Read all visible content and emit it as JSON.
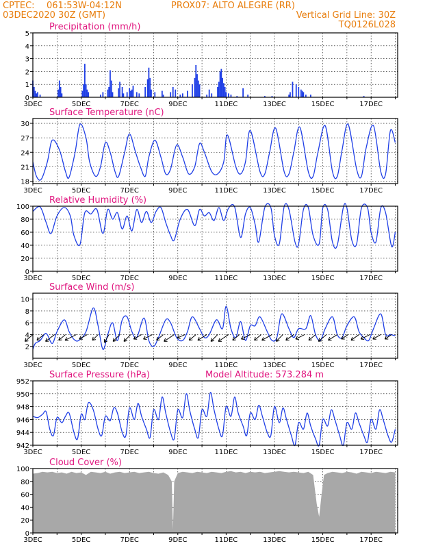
{
  "header": {
    "line1_left": "CPTEC:",
    "location": "061:53W-04:12N",
    "station": "PROX07: ALTO ALEGRE (RR)",
    "date": "03DEC2020 30Z (GMT)",
    "grid_note": "Vertical Grid Line: 30Z",
    "run_code": "TQ0126L028"
  },
  "colors": {
    "header": "#e87d0c",
    "panel_title": "#e0167f",
    "series": "#1f3fe6",
    "cloud": "#a8a8a8"
  },
  "x_axis": {
    "tick_labels": [
      "3DEC",
      "5DEC",
      "7DEC",
      "9DEC",
      "11DEC",
      "13DEC",
      "15DEC",
      "17DEC"
    ],
    "day_range": [
      3,
      18.1
    ]
  },
  "chart_data": [
    {
      "type": "bar",
      "title": "Precipitation (mm/h)",
      "ylim": [
        0,
        5
      ],
      "yticks": [
        0,
        1,
        2,
        3,
        4,
        5
      ],
      "x": [
        3.0,
        3.05,
        3.1,
        3.15,
        3.2,
        3.3,
        4.05,
        4.1,
        4.15,
        4.2,
        5.05,
        5.1,
        5.15,
        5.2,
        5.25,
        5.3,
        5.8,
        5.9,
        6.1,
        6.15,
        6.2,
        6.25,
        6.3,
        6.55,
        6.6,
        6.7,
        6.75,
        6.9,
        7.0,
        7.05,
        7.1,
        7.15,
        7.3,
        7.4,
        7.65,
        7.75,
        7.8,
        7.85,
        7.9,
        8.05,
        8.35,
        8.4,
        8.7,
        8.8,
        8.9,
        9.1,
        9.2,
        9.4,
        9.6,
        9.7,
        9.75,
        9.8,
        9.85,
        9.9,
        10.2,
        10.3,
        10.4,
        10.65,
        10.7,
        10.75,
        10.8,
        10.85,
        10.9,
        10.95,
        11.0,
        11.1,
        11.2,
        11.45,
        11.7,
        11.9,
        12.6,
        12.9,
        13.6,
        13.65,
        13.75,
        13.9,
        14.0,
        14.1,
        14.15,
        14.2,
        14.3,
        14.5,
        16.7
      ],
      "values": [
        1.3,
        0.8,
        0.5,
        0.3,
        0.4,
        0.2,
        0.6,
        1.3,
        0.8,
        0.3,
        0.5,
        1.0,
        2.6,
        1.0,
        0.6,
        0.4,
        0.2,
        0.4,
        0.6,
        0.8,
        2.1,
        1.3,
        0.4,
        0.7,
        1.2,
        0.8,
        0.3,
        0.4,
        0.7,
        0.5,
        0.6,
        0.9,
        0.4,
        0.3,
        0.8,
        1.4,
        2.3,
        1.5,
        0.6,
        0.4,
        0.5,
        0.2,
        0.4,
        0.8,
        0.6,
        0.2,
        0.3,
        0.5,
        1.0,
        1.5,
        2.5,
        1.8,
        1.3,
        1.0,
        0.2,
        0.6,
        0.3,
        0.8,
        1.2,
        2.0,
        2.2,
        1.5,
        1.1,
        0.8,
        0.4,
        0.3,
        0.2,
        0.1,
        0.7,
        0.2,
        0.1,
        0.1,
        0.2,
        0.4,
        1.2,
        1.0,
        0.8,
        0.6,
        0.5,
        0.4,
        0.2,
        0.2,
        0.1
      ]
    },
    {
      "type": "line",
      "title": "Surface Temperature (nC)",
      "ylim": [
        17.5,
        31
      ],
      "yticks": [
        18,
        21,
        24,
        27,
        30
      ],
      "x": [
        3.0,
        3.15,
        3.35,
        3.6,
        3.8,
        4.1,
        4.35,
        4.5,
        4.75,
        4.95,
        5.2,
        5.35,
        5.6,
        5.8,
        6.0,
        6.2,
        6.4,
        6.55,
        6.8,
        7.0,
        7.25,
        7.45,
        7.65,
        7.8,
        8.05,
        8.3,
        8.5,
        8.7,
        8.95,
        9.2,
        9.45,
        9.7,
        9.9,
        10.1,
        10.4,
        10.65,
        10.9,
        11.05,
        11.4,
        11.6,
        11.8,
        12.0,
        12.4,
        12.6,
        12.8,
        13.05,
        13.4,
        13.6,
        13.8,
        14.05,
        14.4,
        14.6,
        14.8,
        15.1,
        15.4,
        15.6,
        15.8,
        16.05,
        16.4,
        16.6,
        16.8,
        17.1,
        17.4,
        17.6,
        17.8,
        18.0
      ],
      "values": [
        22,
        19,
        18.4,
        22,
        26.5,
        24.5,
        20,
        18.8,
        24,
        29.8,
        27,
        22,
        19,
        21,
        26,
        24,
        20,
        19,
        24,
        27.8,
        24,
        21,
        19,
        23,
        26.5,
        23,
        19.5,
        20.5,
        25.5,
        23,
        19.5,
        21,
        25.8,
        24,
        20,
        19.5,
        22,
        27.6,
        21,
        19.5,
        22,
        28.5,
        20,
        19.5,
        24,
        29,
        20,
        19.5,
        24,
        29.2,
        20,
        19,
        24,
        29.5,
        20,
        19,
        24.5,
        29.8,
        20.5,
        19,
        25,
        29.5,
        20,
        19.5,
        28.5,
        26
      ]
    },
    {
      "type": "line",
      "title": "Relative Humidity (%)",
      "ylim": [
        0,
        100
      ],
      "yticks": [
        0,
        20,
        40,
        60,
        80,
        100
      ],
      "x": [
        3.0,
        3.3,
        3.55,
        3.75,
        4.0,
        4.3,
        4.55,
        4.7,
        4.95,
        5.15,
        5.4,
        5.65,
        5.9,
        6.1,
        6.3,
        6.5,
        6.7,
        6.9,
        7.1,
        7.3,
        7.5,
        7.7,
        7.9,
        8.1,
        8.3,
        8.5,
        8.7,
        8.85,
        9.1,
        9.4,
        9.7,
        9.9,
        10.1,
        10.3,
        10.5,
        10.7,
        10.9,
        11.1,
        11.35,
        11.6,
        11.8,
        12.0,
        12.2,
        12.35,
        12.6,
        12.85,
        13.0,
        13.2,
        13.4,
        13.6,
        13.85,
        14.0,
        14.2,
        14.4,
        14.6,
        14.85,
        15.0,
        15.2,
        15.4,
        15.6,
        15.85,
        16.0,
        16.2,
        16.4,
        16.6,
        16.85,
        17.0,
        17.2,
        17.4,
        17.6,
        17.85,
        18.0
      ],
      "values": [
        92,
        99,
        75,
        58,
        85,
        98,
        85,
        55,
        41,
        90,
        88,
        95,
        58,
        95,
        80,
        90,
        65,
        85,
        62,
        95,
        75,
        92,
        75,
        92,
        98,
        75,
        55,
        48,
        80,
        95,
        70,
        95,
        85,
        90,
        78,
        98,
        78,
        97,
        99,
        52,
        88,
        98,
        72,
        45,
        98,
        98,
        55,
        42,
        99,
        95,
        45,
        42,
        95,
        98,
        55,
        42,
        97,
        95,
        45,
        40,
        98,
        97,
        48,
        42,
        97,
        98,
        60,
        45,
        97,
        90,
        38,
        60
      ]
    },
    {
      "type": "line",
      "title": "Surface Wind (m/s)",
      "ylim": [
        0,
        11
      ],
      "yticks": [
        2,
        4,
        6,
        8,
        10
      ],
      "x": [
        3.0,
        3.1,
        3.3,
        3.55,
        3.8,
        4.0,
        4.3,
        4.5,
        4.7,
        4.9,
        5.2,
        5.5,
        5.7,
        5.9,
        6.1,
        6.3,
        6.5,
        6.7,
        6.9,
        7.1,
        7.3,
        7.6,
        7.8,
        8.0,
        8.2,
        8.5,
        8.7,
        8.95,
        9.2,
        9.4,
        9.6,
        9.9,
        10.1,
        10.3,
        10.6,
        10.85,
        11.0,
        11.2,
        11.4,
        11.6,
        11.8,
        12.0,
        12.2,
        12.4,
        12.7,
        12.9,
        13.1,
        13.3,
        13.6,
        13.8,
        14.0,
        14.3,
        14.5,
        14.7,
        14.9,
        15.1,
        15.4,
        15.6,
        15.8,
        16.0,
        16.3,
        16.5,
        16.7,
        16.9,
        17.1,
        17.4,
        17.6,
        17.8,
        18.0
      ],
      "values": [
        1.5,
        2.5,
        3.0,
        4.2,
        2.5,
        4.5,
        6.5,
        4.5,
        3.2,
        3.0,
        4.5,
        8.5,
        5.5,
        1.5,
        4.0,
        6.0,
        3.0,
        6.5,
        7.0,
        4.5,
        3.5,
        6.8,
        3.0,
        2.0,
        3.5,
        6.5,
        6.0,
        3.5,
        3.0,
        4.5,
        7.0,
        5.0,
        3.5,
        4.0,
        6.5,
        5.0,
        8.8,
        5.0,
        3.5,
        6.2,
        3.0,
        5.5,
        5.5,
        7.0,
        4.5,
        3.0,
        3.5,
        7.5,
        5.0,
        3.5,
        5.0,
        5.0,
        7.2,
        4.0,
        3.0,
        5.0,
        7.0,
        4.0,
        3.5,
        5.5,
        7.0,
        4.5,
        3.5,
        3.0,
        5.0,
        7.5,
        4.0,
        4.0,
        3.8
      ]
    },
    {
      "type": "line",
      "title": "Surface Pressure (hPa)",
      "annotation": "Model Altitude: 573.284 m",
      "ylim": [
        942,
        952
      ],
      "yticks": [
        942,
        944,
        946,
        948,
        950,
        952
      ],
      "x": [
        3.0,
        3.2,
        3.4,
        3.55,
        3.7,
        3.85,
        4.0,
        4.2,
        4.35,
        4.5,
        4.7,
        4.85,
        5.0,
        5.15,
        5.3,
        5.5,
        5.7,
        5.85,
        6.0,
        6.2,
        6.35,
        6.5,
        6.7,
        6.85,
        7.0,
        7.2,
        7.35,
        7.5,
        7.7,
        7.85,
        8.0,
        8.2,
        8.35,
        8.5,
        8.7,
        8.85,
        9.0,
        9.2,
        9.35,
        9.5,
        9.7,
        9.85,
        10.0,
        10.2,
        10.35,
        10.5,
        10.7,
        10.85,
        11.0,
        11.2,
        11.35,
        11.5,
        11.7,
        11.85,
        12.0,
        12.2,
        12.35,
        12.5,
        12.7,
        12.85,
        13.0,
        13.2,
        13.35,
        13.5,
        13.7,
        13.85,
        14.0,
        14.2,
        14.35,
        14.5,
        14.7,
        14.85,
        15.0,
        15.2,
        15.35,
        15.5,
        15.7,
        15.85,
        16.0,
        16.2,
        16.35,
        16.5,
        16.7,
        16.85,
        17.0,
        17.2,
        17.35,
        17.5,
        17.7,
        17.85,
        18.0
      ],
      "values": [
        946.5,
        946.3,
        946.8,
        947.2,
        944.5,
        943.5,
        946.3,
        945.5,
        946.5,
        947.0,
        944.0,
        943.0,
        946.8,
        946.0,
        948.6,
        947.5,
        944.5,
        943.5,
        946.5,
        945.8,
        947.8,
        947.0,
        944.0,
        943.5,
        947.8,
        946.0,
        948.5,
        946.5,
        944.5,
        943.2,
        947.5,
        946.0,
        949.5,
        947.0,
        944.0,
        943.0,
        947.5,
        946.3,
        950.0,
        947.3,
        944.5,
        943.2,
        947.5,
        946.5,
        950.2,
        947.5,
        944.5,
        943.5,
        948.0,
        946.5,
        949.5,
        947.0,
        945.0,
        943.5,
        947.0,
        946.0,
        948.2,
        946.5,
        944.0,
        943.5,
        948.0,
        945.5,
        947.8,
        946.0,
        943.5,
        942.0,
        945.5,
        944.5,
        947.0,
        945.0,
        943.0,
        942.0,
        946.0,
        945.0,
        947.5,
        946.0,
        943.5,
        942.0,
        945.5,
        944.5,
        947.0,
        945.5,
        943.5,
        942.5,
        946.0,
        944.5,
        947.5,
        946.0,
        943.5,
        942.5,
        944.5
      ]
    },
    {
      "type": "area",
      "title": "Cloud Cover (%)",
      "ylim": [
        0,
        100
      ],
      "yticks": [
        0,
        20,
        40,
        60,
        80,
        100
      ],
      "x": [
        3.0,
        3.2,
        3.4,
        3.6,
        3.8,
        4.0,
        4.2,
        4.4,
        4.6,
        4.8,
        5.0,
        5.2,
        5.4,
        5.6,
        5.8,
        6.0,
        6.2,
        6.4,
        6.6,
        6.8,
        7.0,
        7.2,
        7.4,
        7.6,
        7.8,
        8.0,
        8.2,
        8.4,
        8.6,
        8.75,
        8.8,
        8.85,
        9.0,
        9.2,
        9.4,
        9.6,
        9.8,
        10.0,
        10.2,
        10.4,
        10.6,
        10.8,
        11.0,
        11.2,
        11.4,
        11.6,
        11.8,
        12.0,
        12.2,
        12.4,
        12.6,
        12.8,
        13.0,
        13.2,
        13.4,
        13.6,
        13.8,
        14.0,
        14.2,
        14.4,
        14.6,
        14.75,
        14.85,
        14.95,
        15.05,
        15.2,
        15.4,
        15.6,
        15.8,
        16.0,
        16.2,
        16.4,
        16.6,
        16.8,
        17.0,
        17.2,
        17.4,
        17.6,
        17.8,
        18.0
      ],
      "values": [
        92,
        93,
        95,
        94,
        95,
        93,
        94,
        92,
        95,
        93,
        94,
        90,
        95,
        94,
        93,
        95,
        92,
        94,
        95,
        93,
        94,
        95,
        93,
        94,
        95,
        93,
        92,
        94,
        90,
        80,
        5,
        80,
        93,
        95,
        94,
        93,
        95,
        94,
        93,
        95,
        94,
        93,
        95,
        96,
        94,
        95,
        93,
        95,
        94,
        95,
        93,
        94,
        95,
        96,
        95,
        94,
        95,
        94,
        93,
        95,
        90,
        45,
        25,
        60,
        90,
        93,
        95,
        94,
        93,
        95,
        94,
        92,
        95,
        94,
        93,
        95,
        94,
        93,
        95,
        94
      ]
    }
  ],
  "wind_vectors": {
    "days": [
      3.0,
      3.45,
      3.9,
      4.35,
      4.8,
      5.25,
      5.7,
      6.15,
      6.6,
      7.05,
      7.5,
      7.95,
      8.4,
      8.85,
      9.3,
      9.75,
      10.2,
      10.65,
      11.1,
      11.55,
      12.0,
      12.45,
      12.9,
      13.35,
      13.8,
      14.25,
      14.7,
      15.15,
      15.6,
      16.05,
      16.5,
      16.95,
      17.4,
      17.85
    ],
    "u": [
      -3.5,
      -3.0,
      -4.0,
      -3.0,
      -5.0,
      -3.5,
      -2.5,
      -2.0,
      -3.0,
      -3.0,
      -3.5,
      -4.0,
      -3.0,
      -4.5,
      -3.5,
      -3.0,
      -4.0,
      -3.0,
      -4.5,
      -3.0,
      -4.0,
      -3.0,
      -4.5,
      -3.0,
      -3.5,
      -4.0,
      -3.0,
      -3.5,
      -4.0,
      -3.0,
      -3.5,
      -4.0,
      -3.5,
      -3.0
    ],
    "v": [
      -3.0,
      -2.5,
      -3.0,
      -2.5,
      -2.5,
      -2.0,
      -2.5,
      -3.5,
      -3.0,
      -3.0,
      -2.0,
      -2.0,
      -2.5,
      -3.0,
      -1.5,
      -2.5,
      -2.5,
      -3.0,
      -3.0,
      -2.5,
      -2.0,
      -2.5,
      -2.5,
      -3.0,
      -2.5,
      -2.0,
      -2.5,
      -3.0,
      -2.5,
      -2.0,
      -2.5,
      -2.0,
      -2.0,
      -2.0
    ]
  }
}
